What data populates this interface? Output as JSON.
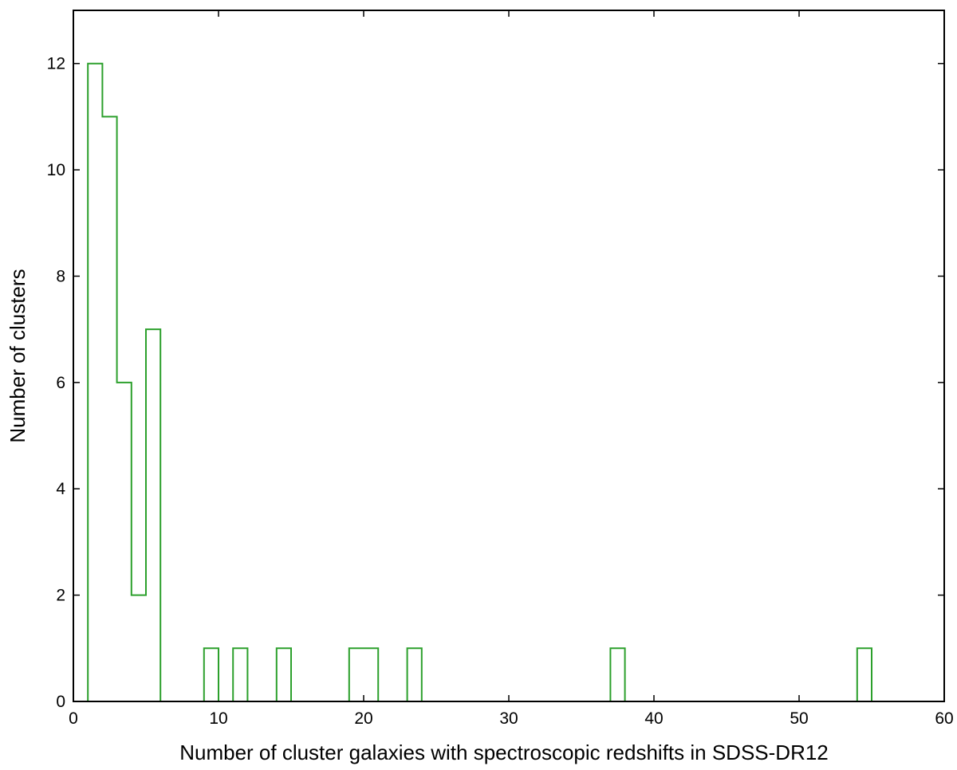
{
  "chart_data": {
    "type": "histogram",
    "title": "",
    "xlabel": "Number of cluster galaxies with spectroscopic redshifts in SDSS-DR12",
    "ylabel": "Number of clusters",
    "xlim": [
      0,
      60
    ],
    "ylim": [
      0,
      13
    ],
    "xticks": [
      0,
      10,
      20,
      30,
      40,
      50,
      60
    ],
    "yticks": [
      0,
      2,
      4,
      6,
      8,
      10,
      12
    ],
    "grid": false,
    "line_color": "#2ca02c",
    "bin_edges": [
      1,
      2,
      3,
      4,
      5,
      6,
      7,
      8,
      9,
      10,
      11,
      12,
      13,
      14,
      15,
      16,
      17,
      18,
      19,
      20,
      21,
      22,
      23,
      24,
      25,
      26,
      27,
      28,
      29,
      30,
      31,
      32,
      33,
      34,
      35,
      36,
      37,
      38,
      39,
      40,
      41,
      42,
      43,
      44,
      45,
      46,
      47,
      48,
      49,
      50,
      51,
      52,
      53,
      54,
      55,
      56,
      57,
      58,
      59,
      60
    ],
    "counts": [
      12,
      11,
      6,
      2,
      7,
      0,
      0,
      0,
      1,
      0,
      1,
      0,
      0,
      1,
      0,
      0,
      0,
      0,
      1,
      1,
      0,
      0,
      1,
      0,
      0,
      0,
      0,
      0,
      0,
      0,
      0,
      0,
      0,
      0,
      0,
      0,
      1,
      0,
      0,
      0,
      0,
      0,
      0,
      0,
      0,
      0,
      0,
      0,
      0,
      0,
      0,
      0,
      0,
      1,
      0,
      0,
      0,
      0,
      0
    ]
  }
}
